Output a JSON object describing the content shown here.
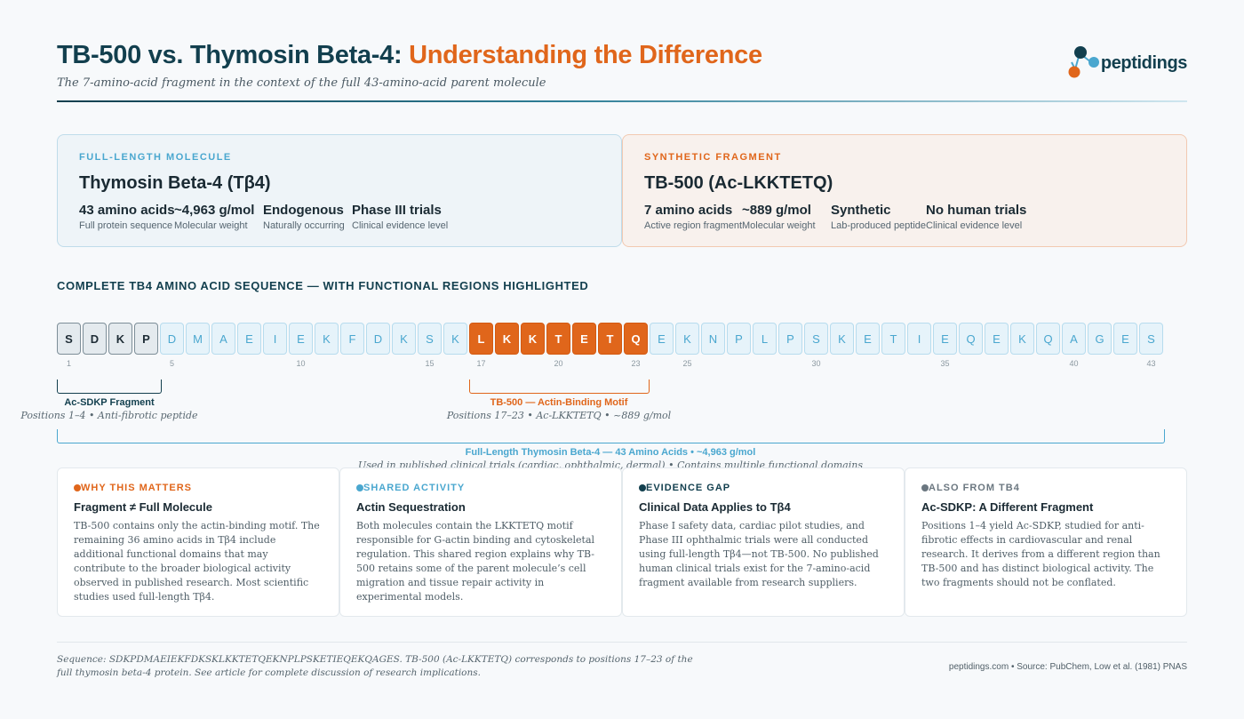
{
  "header": {
    "title_main": "TB-500 vs. Thymosin Beta-4: ",
    "title_accent": "Understanding the Difference",
    "subtitle": "The 7-amino-acid fragment in the context of the full 43-amino-acid parent molecule",
    "logo_text": "peptidings"
  },
  "colors": {
    "navy": "#123f4e",
    "orange": "#e0661b",
    "light_blue": "#4aa7cf",
    "gray": "#6b7780"
  },
  "cards": [
    {
      "eyebrow": "FULL-LENGTH MOLECULE",
      "title": "Thymosin Beta-4 (Tβ4)",
      "stats": [
        {
          "value": "43 amino acids",
          "label": "Full protein sequence"
        },
        {
          "value": "~4,963 g/mol",
          "label": "Molecular weight"
        },
        {
          "value": "Endogenous",
          "label": "Naturally occurring"
        },
        {
          "value": "Phase III trials",
          "label": "Clinical evidence level"
        }
      ]
    },
    {
      "eyebrow": "SYNTHETIC FRAGMENT",
      "title": "TB-500 (Ac-LKKTETQ)",
      "stats": [
        {
          "value": "7 amino acids",
          "label": "Active region fragment"
        },
        {
          "value": "~889 g/mol",
          "label": "Molecular weight"
        },
        {
          "value": "Synthetic",
          "label": "Lab-produced peptide"
        },
        {
          "value": "No human trials",
          "label": "Clinical evidence level"
        }
      ]
    }
  ],
  "sequence_section": {
    "title": "COMPLETE TB4 AMINO ACID SEQUENCE — WITH FUNCTIONAL REGIONS HIGHLIGHTED",
    "residues": [
      "S",
      "D",
      "K",
      "P",
      "D",
      "M",
      "A",
      "E",
      "I",
      "E",
      "K",
      "F",
      "D",
      "K",
      "S",
      "K",
      "L",
      "K",
      "K",
      "T",
      "E",
      "T",
      "Q",
      "E",
      "K",
      "N",
      "P",
      "L",
      "P",
      "S",
      "K",
      "E",
      "T",
      "I",
      "E",
      "Q",
      "E",
      "K",
      "Q",
      "A",
      "G",
      "E",
      "S"
    ],
    "sdkp_range": [
      1,
      4
    ],
    "tb500_range": [
      17,
      23
    ],
    "position_labels": [
      1,
      5,
      10,
      15,
      17,
      20,
      23,
      25,
      30,
      35,
      40,
      43
    ],
    "regions": {
      "sdkp": {
        "label": "Ac-SDKP Fragment",
        "sub": "Positions 1–4 • Anti-fibrotic peptide"
      },
      "tb500": {
        "label": "TB-500 — Actin-Binding Motif",
        "sub": "Positions 17–23 • Ac-LKKTETQ • ~889 g/mol"
      },
      "full": {
        "label": "Full-Length Thymosin Beta-4 — 43 Amino Acids • ~4,963 g/mol",
        "sub": "Used in published clinical trials (cardiac, ophthalmic, dermal) • Contains multiple functional domains"
      }
    }
  },
  "info_cards": [
    {
      "eyebrow": "WHY THIS MATTERS",
      "color": "#e0661b",
      "title": "Fragment ≠ Full Molecule",
      "body": "TB-500 contains only the actin-binding motif. The remaining 36 amino acids in Tβ4 include additional functional domains that may contribute to the broader biological activity observed in published research. Most scientific studies used full-length Tβ4."
    },
    {
      "eyebrow": "SHARED ACTIVITY",
      "color": "#4aa7cf",
      "title": "Actin Sequestration",
      "body": "Both molecules contain the LKKTETQ motif responsible for G-actin binding and cytoskeletal regulation. This shared region explains why TB-500 retains some of the parent molecule’s cell migration and tissue repair activity in experimental models."
    },
    {
      "eyebrow": "EVIDENCE GAP",
      "color": "#123f4e",
      "title": "Clinical Data Applies to Tβ4",
      "body": "Phase I safety data, cardiac pilot studies, and Phase III ophthalmic trials were all conducted using full-length Tβ4—not TB-500. No published human clinical trials exist for the 7-amino-acid fragment available from research suppliers."
    },
    {
      "eyebrow": "ALSO FROM TB4",
      "color": "#6b7780",
      "title": "Ac-SDKP: A Different Fragment",
      "body": "Positions 1–4 yield Ac-SDKP, studied for anti-fibrotic effects in cardiovascular and renal research. It derives from a different region than TB-500 and has distinct biological activity. The two fragments should not be conflated."
    }
  ],
  "footer": {
    "note": "Sequence: SDKPDMAEIEKFDKSKLKKTETQEKNPLPSKETIEQEKQAGES. TB-500 (Ac-LKKTETQ) corresponds to positions 17–23 of the full thymosin beta-4 protein. See article for complete discussion of research implications.",
    "source": "peptidings.com  •  Source: PubChem, Low et al. (1981) PNAS"
  }
}
